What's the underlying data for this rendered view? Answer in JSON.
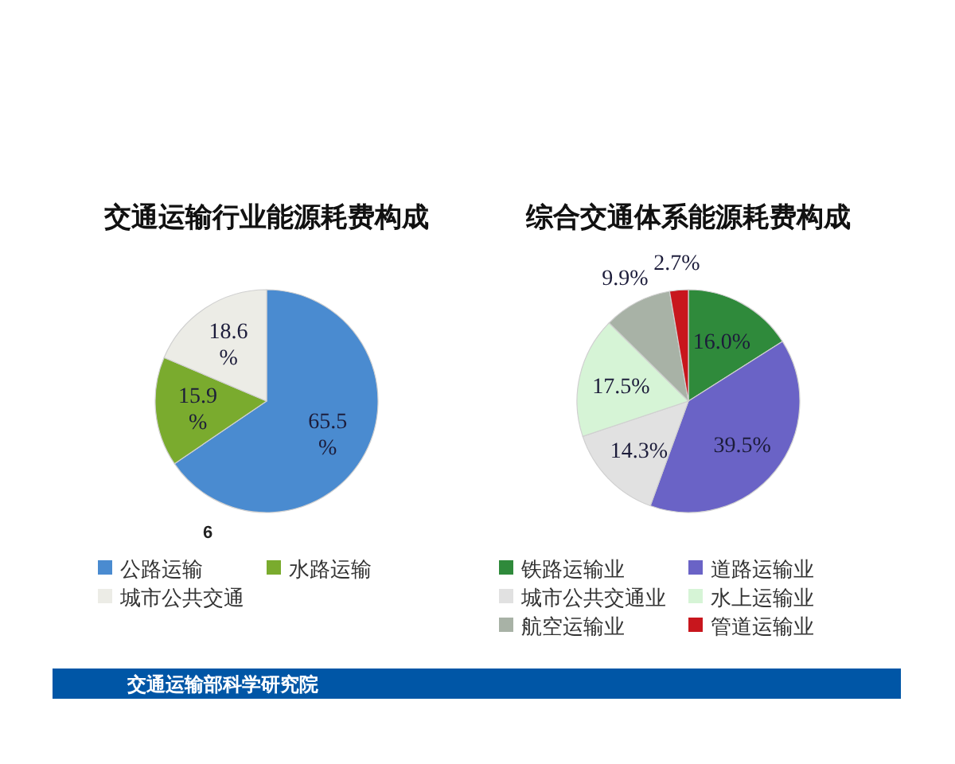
{
  "chart_data": [
    {
      "type": "pie",
      "title": "交通运输行业能源耗费构成",
      "categories": [
        "公路运输",
        "水路运输",
        "城市公共交通"
      ],
      "values": [
        65.5,
        15.9,
        18.6
      ],
      "colors": [
        "#4a8bd0",
        "#7aab2e",
        "#ecece6"
      ],
      "value_labels": [
        "65.5 %",
        "15.9 %",
        "18.6 %"
      ],
      "annotations": [
        "6"
      ],
      "legend": "bottom"
    },
    {
      "type": "pie",
      "title": "综合交通体系能源耗费构成",
      "categories": [
        "铁路运输业",
        "道路运输业",
        "城市公共交通业",
        "水上运输业",
        "航空运输业",
        "管道运输业"
      ],
      "values": [
        16.0,
        39.5,
        14.3,
        17.5,
        9.9,
        2.7
      ],
      "colors": [
        "#2f8a3b",
        "#6a63c6",
        "#e1e1e1",
        "#d6f4d6",
        "#a8b2a6",
        "#c8161d"
      ],
      "value_labels": [
        "16.0%",
        "39.5%",
        "14.3%",
        "17.5%",
        "9.9%",
        "2.7%"
      ],
      "legend": "bottom"
    },
    {
      "type": "other",
      "annotations": [
        "交通运输部科学研究院"
      ]
    }
  ]
}
